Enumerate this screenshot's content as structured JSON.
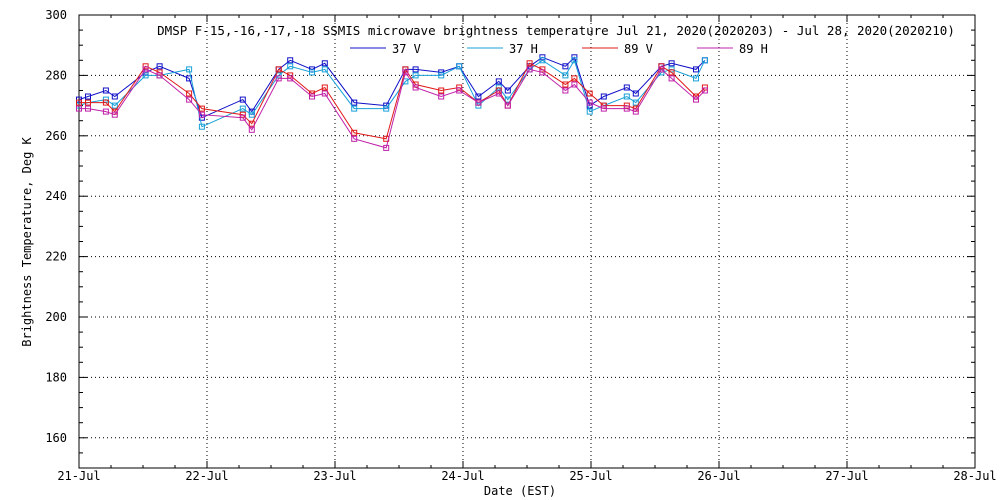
{
  "chart_data": {
    "type": "line",
    "title": "DMSP F-15,-16,-17,-18 SSMIS microwave brightness temperature Jul 21, 2020(2020203) - Jul 28, 2020(2020210)",
    "xlabel": "Date (EST)",
    "ylabel": "Brightness Temperature, Deg K",
    "xlim": [
      0,
      7
    ],
    "ylim": [
      150,
      300
    ],
    "x_ticks": [
      "21-Jul",
      "22-Jul",
      "23-Jul",
      "24-Jul",
      "25-Jul",
      "26-Jul",
      "27-Jul",
      "28-Jul"
    ],
    "y_ticks": [
      160,
      180,
      200,
      220,
      240,
      260,
      280,
      300
    ],
    "grid": true,
    "legend_position": "top-center",
    "x_units": "days since 21-Jul 00:00 EST",
    "series": [
      {
        "name": "37 V",
        "color": "#1010c8",
        "x": [
          0.0,
          0.07,
          0.21,
          0.28,
          0.52,
          0.63,
          0.86,
          0.96,
          1.28,
          1.35,
          1.56,
          1.65,
          1.82,
          1.92,
          2.15,
          2.4,
          2.55,
          2.63,
          2.83,
          2.97,
          3.12,
          3.28,
          3.35,
          3.52,
          3.62,
          3.8,
          3.87,
          3.99,
          4.1,
          4.28,
          4.35,
          4.55,
          4.63,
          4.82,
          4.89
        ],
        "values": [
          272,
          273,
          275,
          273,
          281,
          283,
          279,
          266,
          272,
          268,
          282,
          285,
          282,
          284,
          271,
          270,
          282,
          282,
          281,
          283,
          273,
          278,
          275,
          283,
          286,
          283,
          286,
          270,
          273,
          276,
          274,
          283,
          284,
          282,
          285
        ]
      },
      {
        "name": "37 H",
        "color": "#18a0d8",
        "x": [
          0.0,
          0.07,
          0.21,
          0.28,
          0.52,
          0.63,
          0.86,
          0.96,
          1.28,
          1.35,
          1.56,
          1.65,
          1.82,
          1.92,
          2.15,
          2.4,
          2.55,
          2.63,
          2.83,
          2.97,
          3.12,
          3.28,
          3.35,
          3.52,
          3.62,
          3.8,
          3.87,
          3.99,
          4.1,
          4.28,
          4.35,
          4.55,
          4.63,
          4.82,
          4.89
        ],
        "values": [
          270,
          271,
          272,
          270,
          280,
          280,
          282,
          263,
          269,
          267,
          280,
          283,
          281,
          282,
          269,
          269,
          278,
          280,
          280,
          283,
          270,
          276,
          272,
          282,
          285,
          280,
          285,
          268,
          270,
          273,
          271,
          281,
          282,
          279,
          285
        ]
      },
      {
        "name": "89 V",
        "color": "#e01818",
        "x": [
          0.0,
          0.07,
          0.21,
          0.28,
          0.52,
          0.63,
          0.86,
          0.96,
          1.28,
          1.35,
          1.56,
          1.65,
          1.82,
          1.92,
          2.15,
          2.4,
          2.55,
          2.63,
          2.83,
          2.97,
          3.12,
          3.28,
          3.35,
          3.52,
          3.62,
          3.8,
          3.87,
          3.99,
          4.1,
          4.28,
          4.35,
          4.55,
          4.63,
          4.82,
          4.89
        ],
        "values": [
          271,
          271,
          271,
          268,
          283,
          281,
          274,
          269,
          267,
          264,
          282,
          280,
          274,
          276,
          261,
          259,
          282,
          277,
          275,
          276,
          271,
          275,
          270,
          284,
          282,
          277,
          279,
          274,
          270,
          270,
          269,
          283,
          281,
          273,
          276
        ]
      },
      {
        "name": "89 H",
        "color": "#c020a8",
        "x": [
          0.0,
          0.07,
          0.21,
          0.28,
          0.52,
          0.63,
          0.86,
          0.96,
          1.28,
          1.35,
          1.56,
          1.65,
          1.82,
          1.92,
          2.15,
          2.4,
          2.55,
          2.63,
          2.83,
          2.97,
          3.12,
          3.28,
          3.35,
          3.52,
          3.62,
          3.8,
          3.87,
          3.99,
          4.1,
          4.28,
          4.35,
          4.55,
          4.63,
          4.82,
          4.89
        ],
        "values": [
          269,
          269,
          268,
          267,
          282,
          280,
          272,
          267,
          266,
          262,
          279,
          279,
          273,
          274,
          259,
          256,
          281,
          276,
          273,
          275,
          271,
          274,
          270,
          282,
          281,
          275,
          277,
          271,
          269,
          269,
          268,
          282,
          279,
          272,
          275
        ]
      }
    ]
  }
}
